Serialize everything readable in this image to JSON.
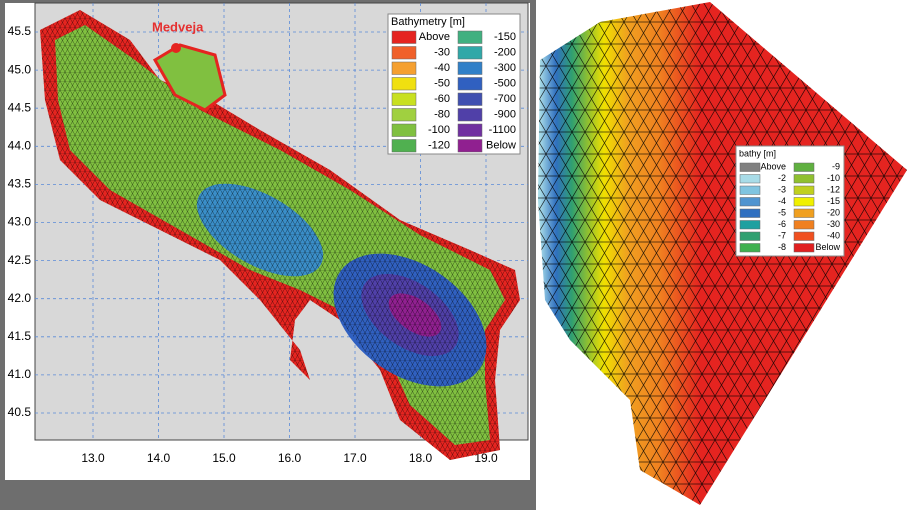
{
  "left_map": {
    "marker_label": "Medveja",
    "y_ticks": [
      "45.5",
      "45.0",
      "44.5",
      "44.0",
      "43.5",
      "43.0",
      "42.5",
      "42.0",
      "41.5",
      "41.0",
      "40.5"
    ],
    "x_ticks": [
      "13.0",
      "14.0",
      "15.0",
      "16.0",
      "17.0",
      "18.0",
      "19.0"
    ],
    "legend": {
      "title": "Bathymetry [m]",
      "entries": [
        {
          "label": "Above",
          "color": "#e52420"
        },
        {
          "label": "-30",
          "color": "#f0602a"
        },
        {
          "label": "-40",
          "color": "#f5a030"
        },
        {
          "label": "-50",
          "color": "#f0e010"
        },
        {
          "label": "-60",
          "color": "#c8e020"
        },
        {
          "label": "-80",
          "color": "#a0d040"
        },
        {
          "label": "-100",
          "color": "#80c040"
        },
        {
          "label": "-120",
          "color": "#50b050"
        },
        {
          "label": "-150",
          "color": "#40b080"
        },
        {
          "label": "-200",
          "color": "#30a8a8"
        },
        {
          "label": "-300",
          "color": "#3080c8"
        },
        {
          "label": "-500",
          "color": "#3060c0"
        },
        {
          "label": "-700",
          "color": "#4050b0"
        },
        {
          "label": "-900",
          "color": "#5040a8"
        },
        {
          "label": "-1100",
          "color": "#7030a0"
        },
        {
          "label": "Below",
          "color": "#902090"
        }
      ]
    }
  },
  "right_map": {
    "legend": {
      "title": "bathy [m]",
      "entries": [
        {
          "label": "Above",
          "color": "#808080"
        },
        {
          "label": "-2",
          "color": "#a8dce8"
        },
        {
          "label": "-3",
          "color": "#80c4e0"
        },
        {
          "label": "-4",
          "color": "#5094d0"
        },
        {
          "label": "-5",
          "color": "#3070c0"
        },
        {
          "label": "-6",
          "color": "#20a0a0"
        },
        {
          "label": "-7",
          "color": "#30a070"
        },
        {
          "label": "-8",
          "color": "#40b050"
        },
        {
          "label": "-9",
          "color": "#60b040"
        },
        {
          "label": "-10",
          "color": "#90c030"
        },
        {
          "label": "-12",
          "color": "#c0d020"
        },
        {
          "label": "-15",
          "color": "#f0f000"
        },
        {
          "label": "-20",
          "color": "#f0a020"
        },
        {
          "label": "-30",
          "color": "#f08020"
        },
        {
          "label": "-40",
          "color": "#f05020"
        },
        {
          "label": "Below",
          "color": "#e02020"
        }
      ]
    }
  }
}
